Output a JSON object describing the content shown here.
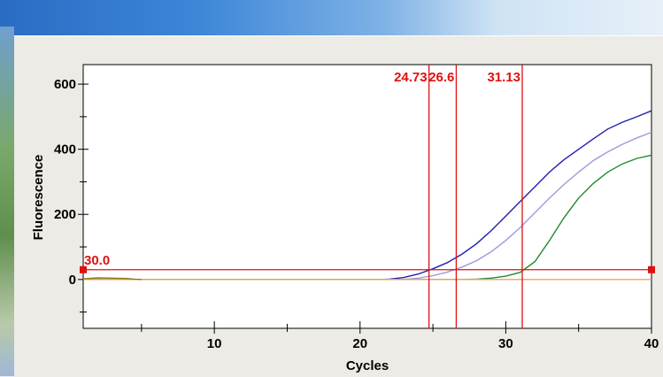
{
  "chart_data": {
    "type": "line",
    "xlabel": "Cycles",
    "ylabel": "Fluorescence",
    "xlim": [
      1,
      40
    ],
    "ylim": [
      -150,
      660
    ],
    "x_ticks": [
      10,
      20,
      30,
      40
    ],
    "y_ticks": [
      0,
      200,
      400,
      600
    ],
    "grid": false,
    "threshold": {
      "value": 30,
      "label": "30.0",
      "color": "#e01010"
    },
    "ct_markers": [
      {
        "cycle": 24.73,
        "label": "24.73"
      },
      {
        "cycle": 26.6,
        "label": "26.6"
      },
      {
        "cycle": 31.13,
        "label": "31.13"
      }
    ],
    "series": [
      {
        "color": "#1f1fb0",
        "points": [
          [
            1,
            0
          ],
          [
            21.5,
            0
          ],
          [
            22,
            1
          ],
          [
            23,
            6
          ],
          [
            24,
            17
          ],
          [
            25,
            33
          ],
          [
            26,
            52
          ],
          [
            27,
            78
          ],
          [
            28,
            110
          ],
          [
            29,
            150
          ],
          [
            30,
            195
          ],
          [
            31,
            240
          ],
          [
            32,
            285
          ],
          [
            33,
            330
          ],
          [
            34,
            368
          ],
          [
            35,
            400
          ],
          [
            36,
            432
          ],
          [
            37,
            462
          ],
          [
            38,
            483
          ],
          [
            39,
            500
          ],
          [
            40,
            518
          ]
        ]
      },
      {
        "color": "#a09ad8",
        "points": [
          [
            1,
            0
          ],
          [
            23,
            0
          ],
          [
            24,
            4
          ],
          [
            25,
            12
          ],
          [
            26,
            23
          ],
          [
            27,
            38
          ],
          [
            28,
            58
          ],
          [
            29,
            85
          ],
          [
            30,
            120
          ],
          [
            31,
            160
          ],
          [
            32,
            205
          ],
          [
            33,
            250
          ],
          [
            34,
            292
          ],
          [
            35,
            330
          ],
          [
            36,
            365
          ],
          [
            37,
            392
          ],
          [
            38,
            415
          ],
          [
            39,
            435
          ],
          [
            40,
            452
          ]
        ]
      },
      {
        "color": "#1f8a2f",
        "points": [
          [
            1,
            0
          ],
          [
            27,
            0
          ],
          [
            28,
            1
          ],
          [
            29,
            4
          ],
          [
            30,
            10
          ],
          [
            31,
            22
          ],
          [
            32,
            55
          ],
          [
            33,
            120
          ],
          [
            34,
            190
          ],
          [
            35,
            250
          ],
          [
            36,
            295
          ],
          [
            37,
            330
          ],
          [
            38,
            355
          ],
          [
            39,
            372
          ],
          [
            40,
            382
          ]
        ]
      },
      {
        "color": "#e8a36a",
        "points": [
          [
            1,
            0
          ],
          [
            40,
            0
          ]
        ]
      },
      {
        "color": "#8a7a10",
        "points": [
          [
            1,
            2
          ],
          [
            2,
            5
          ],
          [
            3,
            4
          ],
          [
            4,
            3
          ],
          [
            4.5,
            1
          ],
          [
            5,
            0
          ]
        ]
      }
    ]
  },
  "colors": {
    "marker_red": "#e01010",
    "panel_bg": "#ecebe6",
    "plot_bg": "#ffffff"
  }
}
